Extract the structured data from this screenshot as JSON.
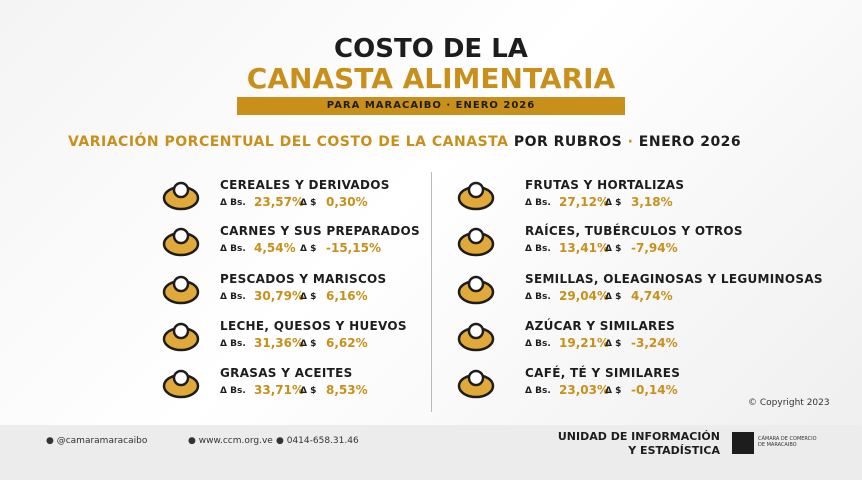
{
  "header": {
    "title_line1": "COSTO DE LA",
    "title_line2": "CANASTA ALIMENTARIA",
    "banner": "PARA MARACAIBO · ENERO 2026"
  },
  "subtitle": {
    "part1": "VARIACIÓN PORCENTUAL DEL COSTO DE LA CANASTA",
    "part2": "POR RUBROS",
    "separator": "·",
    "date": "ENERO 2026"
  },
  "labels": {
    "bs": "Δ Bs.",
    "usd": "Δ $"
  },
  "left": [
    {
      "name": "CEREALES Y DERIVADOS",
      "bs": "23,57%",
      "usd": "0,30%"
    },
    {
      "name": "CARNES Y SUS PREPARADOS",
      "bs": "4,54%",
      "usd": "-15,15%"
    },
    {
      "name": "PESCADOS Y MARISCOS",
      "bs": "30,79%",
      "usd": "6,16%"
    },
    {
      "name": "LECHE, QUESOS Y HUEVOS",
      "bs": "31,36%",
      "usd": "6,62%"
    },
    {
      "name": "GRASAS Y ACEITES",
      "bs": "33,71%",
      "usd": "8,53%"
    }
  ],
  "right": [
    {
      "name": "FRUTAS Y HORTALIZAS",
      "bs": "27,12%",
      "usd": "3,18%"
    },
    {
      "name": "RAÍCES, TUBÉRCULOS Y OTROS",
      "bs": "13,41%",
      "usd": "-7,94%"
    },
    {
      "name": "SEMILLAS, OLEAGINOSAS Y LEGUMINOSAS",
      "bs": "29,04%",
      "usd": "4,74%"
    },
    {
      "name": "AZÚCAR Y SIMILARES",
      "bs": "19,21%",
      "usd": "-3,24%"
    },
    {
      "name": "CAFÉ, TÉ Y SIMILARES",
      "bs": "23,03%",
      "usd": "-0,14%"
    }
  ],
  "copyright": "© Copyright 2023",
  "footer": {
    "social": "@camaramaracaibo",
    "web": "www.ccm.org.ve",
    "phone": "0414-658.31.46",
    "unit_line1": "UNIDAD DE INFORMACIÓN",
    "unit_line2": "Y ESTADÍSTICA",
    "chamber": "CÁMARA DE COMERCIO DE MARACAIBO"
  }
}
